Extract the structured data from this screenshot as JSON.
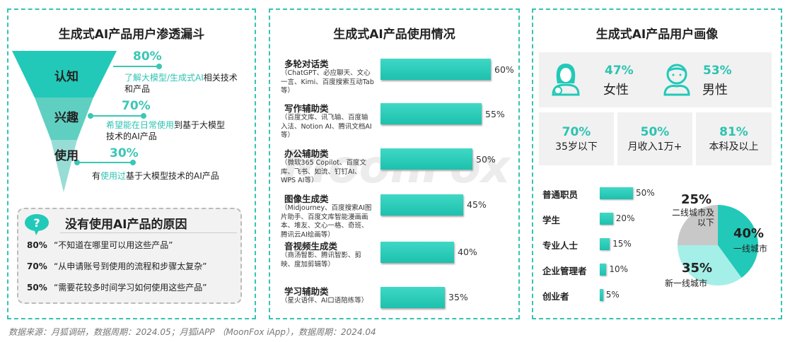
{
  "footer": "数据来源：月狐调研，数据周期：2024.05；月狐iAPP （MoonFox iApp），数据周期：2024.04",
  "watermark": "MoonFox",
  "funnel": {
    "title": "生成式AI产品用户渗透漏斗",
    "stages": [
      {
        "label": "认知",
        "pct": "80%",
        "hl": "了解大模型/生成式AI",
        "rest": "相关技术和产品",
        "pre": ""
      },
      {
        "label": "兴趣",
        "pct": "70%",
        "hl": "希望能在日常使用",
        "rest": "到基于大模型技术的AI产品",
        "pre": ""
      },
      {
        "label": "使用",
        "pct": "30%",
        "hl": "使用过",
        "rest": "基于大模型技术的AI产品",
        "pre": "有"
      }
    ]
  },
  "reasons": {
    "title": "没有使用AI产品的原因",
    "icon": "question-bubble-icon",
    "items": [
      {
        "pct": "80%",
        "text": "“不知道在哪里可以用这些产品”"
      },
      {
        "pct": "70%",
        "text": "“从申请账号到使用的流程和步骤太复杂”"
      },
      {
        "pct": "50%",
        "text": "“需要花较多时间学习如何使用这些产品”"
      }
    ]
  },
  "usage": {
    "title": "生成式AI产品使用情况",
    "chart_data": {
      "type": "bar",
      "orientation": "horizontal",
      "categories": [
        "多轮对话类",
        "写作辅助类",
        "办公辅助类",
        "图像生成类",
        "音视频生成类",
        "学习辅助类"
      ],
      "examples": [
        "（ChatGPT、必应聊天、文心一言、Kimi、百度搜索互动Tab等）",
        "（百度文库、讯飞输、百度输入法、Notion AI、腾讯文档AI等）",
        "（微软365 Copilot、百度文库、飞书、如流、钉钉AI、WPS AI等）",
        "（Midjourney、百度搜索AI图片助手、百度文库智能漫画画本、堆友、文心一格、奇班、腾讯云AI绘画等）",
        "（商汤智影、腾讯智影、剪映、度加剪辑等）",
        "（星火语伴、AI口语陪练等）"
      ],
      "values": [
        60,
        55,
        50,
        45,
        40,
        35
      ],
      "labels": [
        "60%",
        "55%",
        "50%",
        "45%",
        "40%",
        "35%"
      ],
      "unit": "%"
    }
  },
  "profile": {
    "title": "生成式AI产品用户画像",
    "gender": [
      {
        "pct": "47%",
        "label": "女性",
        "icon": "female-user-icon"
      },
      {
        "pct": "53%",
        "label": "男性",
        "icon": "male-user-icon"
      }
    ],
    "stats": [
      {
        "pct": "70%",
        "label": "35岁以下"
      },
      {
        "pct": "50%",
        "label": "月收入1万+"
      },
      {
        "pct": "81%",
        "label": "本科及以上"
      }
    ],
    "chart_data": [
      {
        "type": "bar",
        "orientation": "horizontal",
        "categories": [
          "普通职员",
          "学生",
          "专业人士",
          "企业管理者",
          "创业者"
        ],
        "values": [
          50,
          20,
          15,
          10,
          5
        ],
        "labels": [
          "50%",
          "20%",
          "15%",
          "10%",
          "5%"
        ]
      },
      {
        "type": "pie",
        "slices": [
          {
            "label": "一线城市",
            "value": 40,
            "pct": "40%",
            "color": "#22c9b8"
          },
          {
            "label": "新一线城市",
            "value": 35,
            "pct": "35%",
            "color": "#a4efe7"
          },
          {
            "label": "二线城市及以下",
            "value": 25,
            "pct": "25%",
            "color": "#c8c8c8"
          }
        ]
      }
    ]
  }
}
